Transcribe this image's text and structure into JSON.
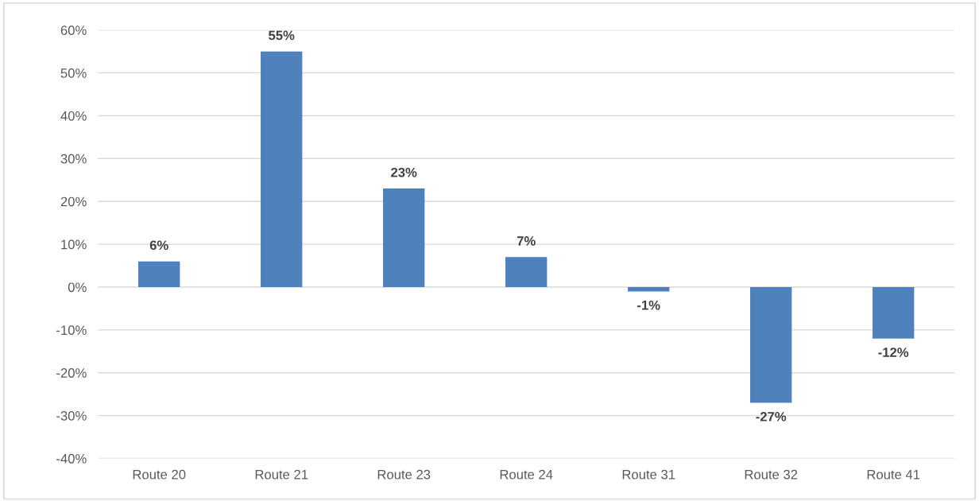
{
  "chart_data": {
    "type": "bar",
    "categories": [
      "Route 20",
      "Route 21",
      "Route 23",
      "Route 24",
      "Route 31",
      "Route 32",
      "Route 41"
    ],
    "values": [
      6,
      55,
      23,
      7,
      -1,
      -27,
      -12
    ],
    "value_labels": [
      "6%",
      "55%",
      "23%",
      "7%",
      "-1%",
      "-27%",
      "-12%"
    ],
    "color": "#4f81bd",
    "ylim": [
      -40,
      60
    ],
    "yticks": [
      {
        "value": -40,
        "label": "-40%"
      },
      {
        "value": -30,
        "label": "-30%"
      },
      {
        "value": -20,
        "label": "-20%"
      },
      {
        "value": -10,
        "label": "-10%"
      },
      {
        "value": 0,
        "label": "0%"
      },
      {
        "value": 10,
        "label": "10%"
      },
      {
        "value": 20,
        "label": "20%"
      },
      {
        "value": 30,
        "label": "30%"
      },
      {
        "value": 40,
        "label": "40%"
      },
      {
        "value": 50,
        "label": "50%"
      },
      {
        "value": 60,
        "label": "60%"
      }
    ],
    "grid": "y"
  }
}
